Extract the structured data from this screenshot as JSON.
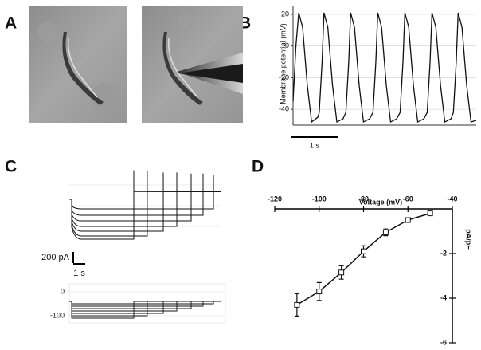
{
  "panel_labels": [
    "A",
    "B",
    "C",
    "D"
  ],
  "chart_data": [
    {
      "type": "line",
      "ylabel": "Membrane potential (mV)",
      "color": "#111111",
      "grid": true,
      "x": [
        0,
        0.06,
        0.12,
        0.2,
        0.3,
        0.39,
        0.52,
        0.55,
        0.61,
        0.65,
        0.73,
        0.83,
        0.92,
        1.05,
        1.11,
        1.17,
        1.21,
        1.29,
        1.39,
        1.48,
        1.61,
        1.68,
        1.74,
        1.78,
        1.86,
        1.96,
        2.05,
        2.18,
        2.25,
        2.31,
        2.35,
        2.43,
        2.53,
        2.62,
        2.75,
        2.82,
        2.88,
        2.92,
        3.0,
        3.1,
        3.19,
        3.32,
        3.37,
        3.43,
        3.47,
        3.55,
        3.65,
        3.74,
        3.85
      ],
      "values": [
        -35,
        0,
        21,
        12,
        -25,
        -48,
        -45,
        -42,
        -10,
        21,
        12,
        -25,
        -48,
        -46,
        -42,
        -10,
        21,
        12,
        -25,
        -48,
        -46,
        -42,
        -10,
        21,
        12,
        -25,
        -48,
        -46,
        -42,
        -10,
        21,
        12,
        -25,
        -48,
        -46,
        -42,
        -10,
        21,
        12,
        -25,
        -48,
        -46,
        -42,
        -10,
        21,
        12,
        -25,
        -48,
        -47
      ],
      "xlim": [
        0,
        3.85
      ],
      "ylim": [
        -50,
        25
      ],
      "yticks": [
        -40,
        -20,
        0,
        20
      ],
      "scale_bar": {
        "value": 1,
        "label": "1 s"
      }
    },
    {
      "type": "traces",
      "color": "#111111",
      "xlim": [
        -0.2,
        12.5
      ],
      "ylim": [
        -800,
        550
      ],
      "ends": [
        5.2,
        6.33,
        7.67,
        8.8,
        10,
        11,
        11.87
      ],
      "instant": [
        -500,
        -460,
        -400,
        -340,
        -270,
        -200,
        -120
      ],
      "steady": [
        -714,
        -657,
        -571,
        -486,
        -386,
        -286,
        -171
      ],
      "tail": [
        520,
        500,
        480,
        480,
        460,
        460,
        440
      ],
      "post_level": 140,
      "scale_bars": [
        {
          "value": 200,
          "label": "200 pA"
        },
        {
          "value": 1,
          "label": "1 s"
        }
      ]
    },
    {
      "type": "steps",
      "color": "#111111",
      "grid": true,
      "xlim": [
        -0.2,
        12.5
      ],
      "ylim": [
        -120,
        10
      ],
      "yticks": [
        0,
        -100
      ],
      "holding": -40,
      "levels": [
        -110,
        -100,
        -90,
        -80,
        -70,
        -60,
        -50
      ],
      "ends": [
        5.2,
        6.33,
        7.67,
        8.8,
        10,
        11,
        11.87
      ]
    },
    {
      "type": "scatter",
      "xlabel": "Voltage (mV)",
      "ylabel": "pA/pF",
      "color": "#111111",
      "x": [
        -110,
        -100,
        -90,
        -80,
        -70,
        -60,
        -50
      ],
      "values": [
        -4.3,
        -3.7,
        -2.85,
        -1.9,
        -1.05,
        -0.5,
        -0.2
      ],
      "errors": [
        0.5,
        0.4,
        0.3,
        0.25,
        0.15,
        0.1,
        0.05
      ],
      "xlim": [
        -120,
        -40
      ],
      "ylim": [
        -6,
        0
      ],
      "xticks": [
        -120,
        -100,
        -80,
        -60,
        -40
      ],
      "yticks": [
        -6,
        -4,
        -2
      ]
    }
  ]
}
